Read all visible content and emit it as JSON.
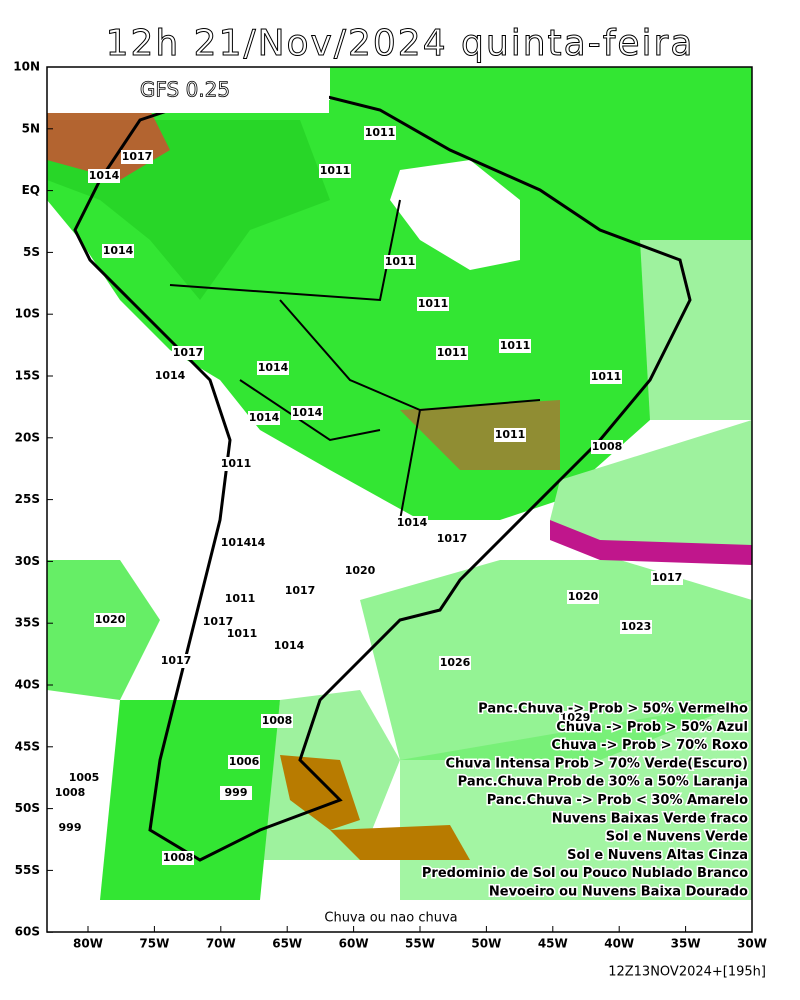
{
  "header": {
    "title": "12h 21/Nov/2024 quinta-feira",
    "model": "GFS 0.25"
  },
  "axes": {
    "lat_ticks": [
      "10N",
      "5N",
      "EQ",
      "5S",
      "10S",
      "15S",
      "20S",
      "25S",
      "30S",
      "35S",
      "40S",
      "45S",
      "50S",
      "55S",
      "60S"
    ],
    "lon_ticks": [
      "80W",
      "75W",
      "70W",
      "65W",
      "60W",
      "55W",
      "50W",
      "45W",
      "40W",
      "35W",
      "30W"
    ]
  },
  "isobar_labels": [
    "1011",
    "1017",
    "1014",
    "1014",
    "1011",
    "1011",
    "1011",
    "1011",
    "1011",
    "1011",
    "1017",
    "1014",
    "1014",
    "1014",
    "1014",
    "1011",
    "1008",
    "1011",
    "1014",
    "1014",
    "1017",
    "1014",
    "1020",
    "1017",
    "1017",
    "1020",
    "1011",
    "1020",
    "1023",
    "1017",
    "1011",
    "1014",
    "1026",
    "1017",
    "1029",
    "1008",
    "1005",
    "1008",
    "1006",
    "999",
    "999",
    "1008"
  ],
  "legend": [
    "Panc.Chuva -> Prob > 50% Vermelho",
    "Chuva -> Prob > 50% Azul",
    "Chuva -> Prob > 70% Roxo",
    "Chuva Intensa Prob > 70% Verde(Escuro)",
    "Panc.Chuva Prob de 30% a 50% Laranja",
    "Panc.Chuva -> Prob < 30% Amarelo",
    "Nuvens Baixas Verde fraco",
    "Sol e Nuvens Verde",
    "Sol e Nuvens Altas Cinza",
    "Predominio de Sol ou Pouco Nublado Branco",
    "Nevoeiro ou Nuvens Baixa Dourado"
  ],
  "caption": "Chuva ou nao chuva",
  "timestamp": "12Z13NOV2024+[195h]"
}
